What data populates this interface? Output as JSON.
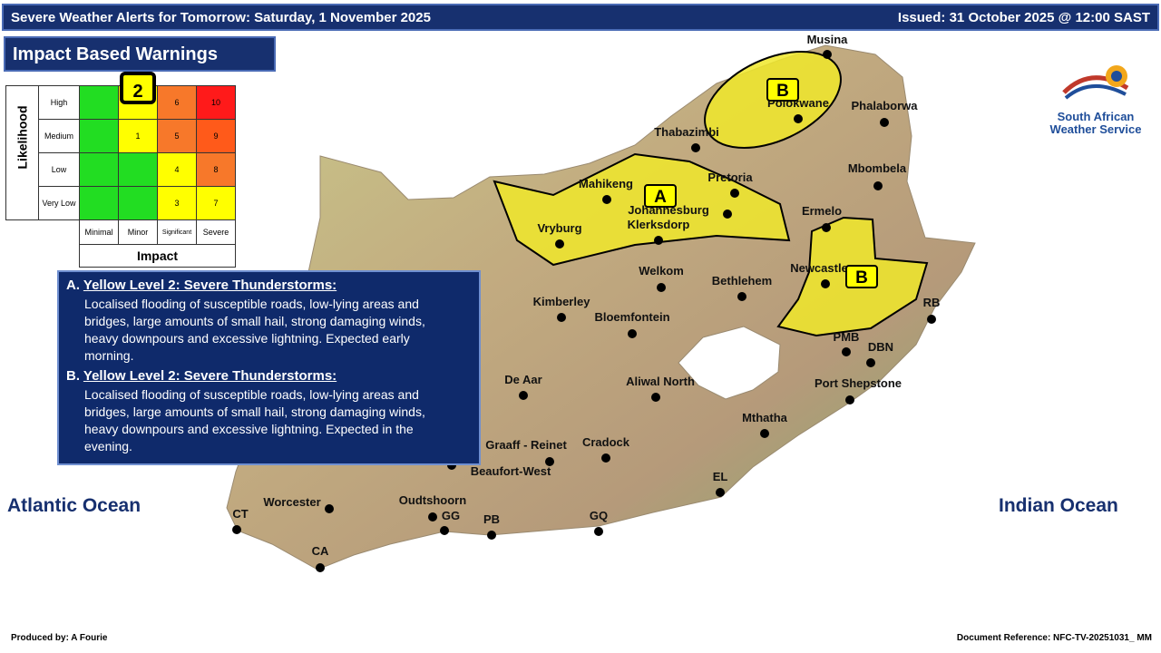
{
  "header": {
    "title": "Severe Weather Alerts for Tomorrow: Saturday, 1 November 2025",
    "issued": "Issued: 31 October 2025 @ 12:00 SAST"
  },
  "panel_title": "Impact Based Warnings",
  "matrix": {
    "likelihood_label": "Likelihood",
    "impact_label": "Impact",
    "columns": [
      "Minimal",
      "Minor",
      "Significant",
      "Severe"
    ],
    "rows": [
      {
        "label": "High",
        "cells": [
          {
            "color": "#22dd22"
          },
          {
            "color": "#ffff00",
            "label": "2",
            "highlight": true
          },
          {
            "color": "#f7782a",
            "label": "6"
          },
          {
            "color": "#ff1a1a",
            "label": "10"
          }
        ]
      },
      {
        "label": "Medium",
        "cells": [
          {
            "color": "#22dd22"
          },
          {
            "color": "#ffff00",
            "label": "1"
          },
          {
            "color": "#f7782a",
            "label": "5"
          },
          {
            "color": "#ff5a1a",
            "label": "9"
          }
        ]
      },
      {
        "label": "Low",
        "cells": [
          {
            "color": "#22dd22"
          },
          {
            "color": "#22dd22"
          },
          {
            "color": "#ffff00",
            "label": "4"
          },
          {
            "color": "#f7782a",
            "label": "8"
          }
        ]
      },
      {
        "label": "Very Low",
        "cells": [
          {
            "color": "#22dd22"
          },
          {
            "color": "#22dd22"
          },
          {
            "color": "#ffff00",
            "label": "3"
          },
          {
            "color": "#ffff00",
            "label": "7"
          }
        ]
      }
    ]
  },
  "warnings": [
    {
      "letter": "A.",
      "title": "Yellow Level 2: Severe Thunderstorms:",
      "text": "Localised flooding of susceptible roads, low-lying areas and bridges, large amounts of small hail, strong damaging winds, heavy downpours and excessive lightning.  Expected early morning."
    },
    {
      "letter": "B.",
      "title": "Yellow Level 2: Severe Thunderstorms:",
      "text": "Localised flooding of susceptible roads, low-lying areas and bridges, large amounts of small hail, strong damaging winds, heavy downpours and excessive lightning.  Expected in the evening."
    }
  ],
  "regions": [
    "A",
    "B",
    "B"
  ],
  "places": [
    "Musina",
    "Polokwane",
    "Phalaborwa",
    "Thabazimbi",
    "Mbombela",
    "Pretoria",
    "Mahikeng",
    "Johannesburg",
    "Klerksdorp",
    "Vryburg",
    "Ermelo",
    "Newcastle",
    "Welkom",
    "Bethlehem",
    "Kimberley",
    "Bloemfontein",
    "RB",
    "PMB",
    "DBN",
    "De Aar",
    "Aliwal North",
    "Port Shepstone",
    "Mthatha",
    "Graaff - Reinet",
    "Cradock",
    "Beaufort-West",
    "EL",
    "Worcester",
    "Oudtshoorn",
    "CT",
    "GG",
    "PB",
    "GQ",
    "CA"
  ],
  "oceans": [
    "Atlantic Ocean",
    "Indian Ocean"
  ],
  "logo": "South African Weather Service",
  "footer": {
    "produced": "Produced by: A Fourie",
    "reference": "Document Reference: NFC-TV-20251031_ MM"
  }
}
